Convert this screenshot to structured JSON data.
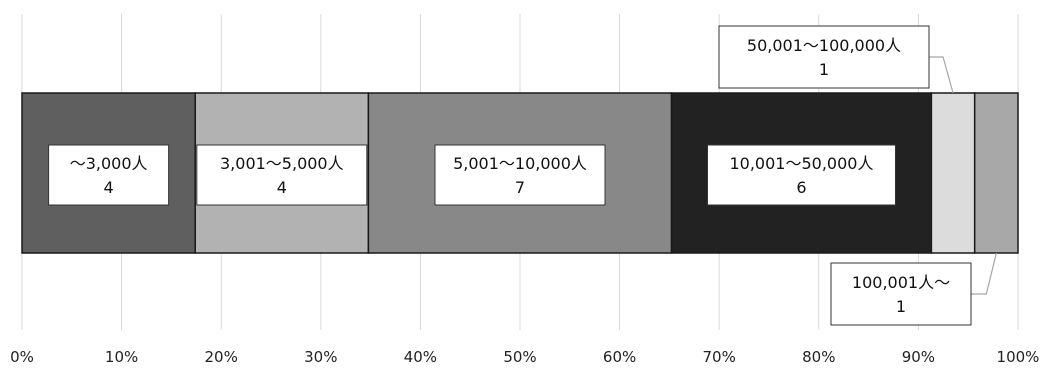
{
  "chart_data": {
    "type": "bar",
    "orientation": "horizontal",
    "stacked": "percent",
    "title": "",
    "xlabel": "",
    "ylabel": "",
    "xlim": [
      0,
      100
    ],
    "x_ticks": [
      "0%",
      "10%",
      "20%",
      "30%",
      "40%",
      "50%",
      "60%",
      "70%",
      "80%",
      "90%",
      "100%"
    ],
    "grid": "vertical",
    "legend": "none",
    "series": [
      {
        "category": "～3,000人",
        "value": 4,
        "color": "#5f5f5f",
        "label_line1": "～3,000人",
        "label_line2": "4"
      },
      {
        "category": "3,001～5,000人",
        "value": 4,
        "color": "#b2b2b2",
        "label_line1": "3,001～5,000人",
        "label_line2": "4"
      },
      {
        "category": "5,001～10,000人",
        "value": 7,
        "color": "#888888",
        "label_line1": "5,001～10,000人",
        "label_line2": "7"
      },
      {
        "category": "10,001～50,000人",
        "value": 6,
        "color": "#222222",
        "label_line1": "10,001～50,000人",
        "label_line2": "6"
      },
      {
        "category": "50,001～100,000人",
        "value": 1,
        "color": "#dcdcdc",
        "label_line1": "50,001～100,000人",
        "label_line2": "1"
      },
      {
        "category": "100,001人～",
        "value": 1,
        "color": "#a8a8a8",
        "label_line1": "100,001人～",
        "label_line2": "1"
      }
    ]
  }
}
